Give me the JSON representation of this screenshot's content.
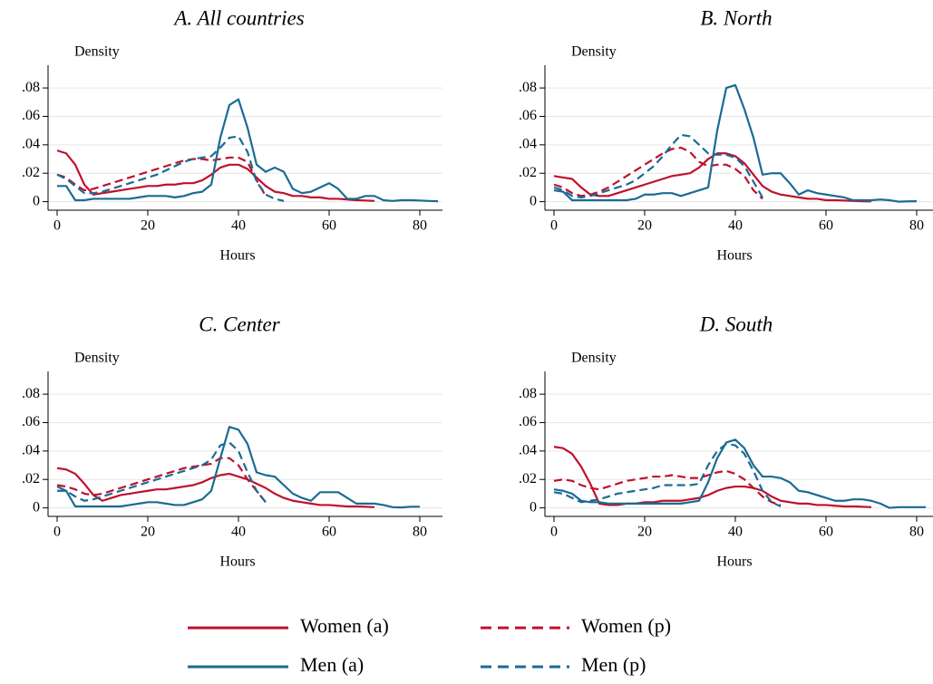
{
  "legend": [
    {
      "name": "Women (a)",
      "color": "#c0102c",
      "dashed": false
    },
    {
      "name": "Women (p)",
      "color": "#c0102c",
      "dashed": true
    },
    {
      "name": "Men (a)",
      "color": "#1a6b94",
      "dashed": false
    },
    {
      "name": "Men (p)",
      "color": "#1a6b94",
      "dashed": true
    }
  ],
  "chart_data": [
    {
      "type": "line",
      "title": "A. All countries",
      "y_label": "Density",
      "x_label": "Hours",
      "xlim": [
        -2,
        85
      ],
      "ylim": [
        -0.006,
        0.096
      ],
      "xticks": [
        0,
        20,
        40,
        60,
        80
      ],
      "yticks": [
        0,
        {
          "value": 0.02,
          "label": ".02"
        },
        {
          "value": 0.04,
          "label": ".04"
        },
        {
          "value": 0.06,
          "label": ".06"
        },
        {
          "value": 0.08,
          "label": ".08"
        }
      ],
      "grid": true,
      "x": [
        0,
        2,
        4,
        6,
        8,
        10,
        12,
        14,
        16,
        18,
        20,
        22,
        24,
        26,
        28,
        30,
        32,
        34,
        36,
        38,
        40,
        42,
        44,
        46,
        48,
        50,
        52,
        54,
        56,
        58,
        60,
        62,
        64,
        66,
        68,
        70,
        72,
        74,
        76,
        78,
        80,
        82,
        84
      ],
      "series": [
        {
          "values": [
            0.036,
            0.034,
            0.026,
            0.012,
            0.005,
            0.006,
            0.007,
            0.008,
            0.009,
            0.01,
            0.011,
            0.011,
            0.012,
            0.012,
            0.013,
            0.013,
            0.015,
            0.019,
            0.024,
            0.026,
            0.026,
            0.023,
            0.017,
            0.011,
            0.007,
            0.006,
            0.004,
            0.004,
            0.003,
            0.003,
            0.002,
            0.002,
            0.0015,
            0.001,
            0.0008,
            0.0005,
            null,
            null,
            null,
            null,
            null,
            null,
            null
          ]
        },
        {
          "values": [
            0.019,
            0.017,
            0.012,
            0.008,
            0.009,
            0.011,
            0.013,
            0.015,
            0.017,
            0.019,
            0.021,
            0.023,
            0.025,
            0.027,
            0.029,
            0.03,
            0.03,
            0.029,
            0.03,
            0.031,
            0.031,
            0.028,
            0.015,
            0.004,
            null,
            null,
            null,
            null,
            null,
            null,
            null,
            null,
            null,
            null,
            null,
            null,
            null,
            null,
            null,
            null,
            null,
            null,
            null
          ]
        },
        {
          "values": [
            0.011,
            0.011,
            0.001,
            0.001,
            0.002,
            0.002,
            0.002,
            0.002,
            0.002,
            0.003,
            0.004,
            0.004,
            0.004,
            0.003,
            0.004,
            0.006,
            0.007,
            0.012,
            0.045,
            0.068,
            0.072,
            0.052,
            0.026,
            0.021,
            0.024,
            0.021,
            0.009,
            0.006,
            0.007,
            0.01,
            0.013,
            0.009,
            0.002,
            0.002,
            0.004,
            0.004,
            0.001,
            0.0005,
            0.001,
            0.001,
            0.0008,
            0.0005,
            0.0003
          ]
        },
        {
          "values": [
            0.019,
            0.016,
            0.011,
            0.006,
            0.006,
            0.007,
            0.009,
            0.011,
            0.013,
            0.015,
            0.017,
            0.019,
            0.022,
            0.025,
            0.028,
            0.03,
            0.031,
            0.032,
            0.038,
            0.045,
            0.046,
            0.035,
            0.014,
            0.005,
            0.002,
            0.0005,
            null,
            null,
            null,
            null,
            null,
            null,
            null,
            null,
            null,
            null,
            null,
            null,
            null,
            null,
            null,
            null,
            null
          ]
        }
      ]
    },
    {
      "type": "line",
      "title": "B. North",
      "y_label": "Density",
      "x_label": "Hours",
      "xlim": [
        -2,
        85
      ],
      "ylim": [
        -0.006,
        0.096
      ],
      "xticks": [
        0,
        20,
        40,
        60,
        80
      ],
      "yticks": [
        0,
        {
          "value": 0.02,
          "label": ".02"
        },
        {
          "value": 0.04,
          "label": ".04"
        },
        {
          "value": 0.06,
          "label": ".06"
        },
        {
          "value": 0.08,
          "label": ".08"
        }
      ],
      "grid": true,
      "x": [
        0,
        2,
        4,
        6,
        8,
        10,
        12,
        14,
        16,
        18,
        20,
        22,
        24,
        26,
        28,
        30,
        32,
        34,
        36,
        38,
        40,
        42,
        44,
        46,
        48,
        50,
        52,
        54,
        56,
        58,
        60,
        62,
        64,
        66,
        68,
        70,
        72,
        74,
        76,
        78,
        80,
        82,
        84
      ],
      "series": [
        {
          "values": [
            0.018,
            0.017,
            0.016,
            0.01,
            0.005,
            0.004,
            0.004,
            0.006,
            0.008,
            0.01,
            0.012,
            0.014,
            0.016,
            0.018,
            0.019,
            0.02,
            0.024,
            0.03,
            0.034,
            0.034,
            0.032,
            0.027,
            0.019,
            0.011,
            0.007,
            0.005,
            0.004,
            0.003,
            0.002,
            0.002,
            0.001,
            0.001,
            0.0008,
            0.0005,
            0.0003,
            0.0002,
            null,
            null,
            null,
            null,
            null,
            null,
            null
          ]
        },
        {
          "values": [
            0.012,
            0.01,
            0.006,
            0.004,
            0.005,
            0.007,
            0.01,
            0.014,
            0.018,
            0.022,
            0.026,
            0.03,
            0.034,
            0.037,
            0.038,
            0.035,
            0.028,
            0.025,
            0.026,
            0.026,
            0.023,
            0.018,
            0.008,
            0.002,
            null,
            null,
            null,
            null,
            null,
            null,
            null,
            null,
            null,
            null,
            null,
            null,
            null,
            null,
            null,
            null,
            null,
            null,
            null
          ]
        },
        {
          "values": [
            0.008,
            0.007,
            0.001,
            0.001,
            0.001,
            0.001,
            0.001,
            0.001,
            0.001,
            0.002,
            0.005,
            0.005,
            0.006,
            0.006,
            0.004,
            0.006,
            0.008,
            0.01,
            0.05,
            0.08,
            0.082,
            0.065,
            0.045,
            0.019,
            0.02,
            0.02,
            0.013,
            0.005,
            0.008,
            0.006,
            0.005,
            0.004,
            0.003,
            0.001,
            0.001,
            0.001,
            0.0015,
            0.001,
            0,
            0.0002,
            0.0003,
            null,
            null
          ]
        },
        {
          "values": [
            0.01,
            0.008,
            0.004,
            0.003,
            0.004,
            0.006,
            0.008,
            0.01,
            0.012,
            0.015,
            0.02,
            0.025,
            0.032,
            0.04,
            0.047,
            0.046,
            0.04,
            0.034,
            0.033,
            0.033,
            0.031,
            0.025,
            0.014,
            0.003,
            null,
            null,
            null,
            null,
            null,
            null,
            null,
            null,
            null,
            null,
            null,
            null,
            null,
            null,
            null,
            null,
            null,
            null,
            null
          ]
        }
      ]
    },
    {
      "type": "line",
      "title": "C. Center",
      "y_label": "Density",
      "x_label": "Hours",
      "xlim": [
        -2,
        85
      ],
      "ylim": [
        -0.006,
        0.096
      ],
      "xticks": [
        0,
        20,
        40,
        60,
        80
      ],
      "yticks": [
        0,
        {
          "value": 0.02,
          "label": ".02"
        },
        {
          "value": 0.04,
          "label": ".04"
        },
        {
          "value": 0.06,
          "label": ".06"
        },
        {
          "value": 0.08,
          "label": ".08"
        }
      ],
      "grid": true,
      "x": [
        0,
        2,
        4,
        6,
        8,
        10,
        12,
        14,
        16,
        18,
        20,
        22,
        24,
        26,
        28,
        30,
        32,
        34,
        36,
        38,
        40,
        42,
        44,
        46,
        48,
        50,
        52,
        54,
        56,
        58,
        60,
        62,
        64,
        66,
        68,
        70,
        72,
        74,
        76,
        78,
        80,
        82,
        84
      ],
      "series": [
        {
          "values": [
            0.028,
            0.027,
            0.024,
            0.017,
            0.009,
            0.005,
            0.007,
            0.009,
            0.01,
            0.011,
            0.012,
            0.013,
            0.013,
            0.014,
            0.015,
            0.016,
            0.018,
            0.021,
            0.023,
            0.024,
            0.022,
            0.02,
            0.017,
            0.014,
            0.01,
            0.007,
            0.005,
            0.004,
            0.003,
            0.002,
            0.002,
            0.0015,
            0.001,
            0.001,
            0.0008,
            0.0005,
            null,
            null,
            null,
            null,
            null,
            null,
            null
          ]
        },
        {
          "values": [
            0.016,
            0.015,
            0.013,
            0.01,
            0.009,
            0.01,
            0.012,
            0.014,
            0.016,
            0.018,
            0.02,
            0.022,
            0.024,
            0.026,
            0.028,
            0.029,
            0.03,
            0.031,
            0.035,
            0.035,
            0.03,
            0.02,
            0.012,
            0.004,
            null,
            null,
            null,
            null,
            null,
            null,
            null,
            null,
            null,
            null,
            null,
            null,
            null,
            null,
            null,
            null,
            null,
            null,
            null
          ]
        },
        {
          "values": [
            0.015,
            0.012,
            0.001,
            0.001,
            0.001,
            0.001,
            0.001,
            0.001,
            0.002,
            0.003,
            0.004,
            0.004,
            0.003,
            0.002,
            0.002,
            0.004,
            0.006,
            0.012,
            0.035,
            0.057,
            0.055,
            0.045,
            0.025,
            0.023,
            0.022,
            0.016,
            0.01,
            0.007,
            0.005,
            0.011,
            0.011,
            0.011,
            0.007,
            0.003,
            0.003,
            0.003,
            0.002,
            0.0005,
            0.0003,
            0.0008,
            0.0008,
            null,
            null
          ]
        },
        {
          "values": [
            0.012,
            0.012,
            0.008,
            0.005,
            0.006,
            0.008,
            0.01,
            0.012,
            0.014,
            0.016,
            0.018,
            0.02,
            0.022,
            0.024,
            0.026,
            0.028,
            0.03,
            0.034,
            0.044,
            0.046,
            0.04,
            0.025,
            0.012,
            0.004,
            null,
            null,
            null,
            null,
            null,
            null,
            null,
            null,
            null,
            null,
            null,
            null,
            null,
            null,
            null,
            null,
            null,
            null,
            null
          ]
        }
      ]
    },
    {
      "type": "line",
      "title": "D. South",
      "y_label": "Density",
      "x_label": "Hours",
      "xlim": [
        -2,
        85
      ],
      "ylim": [
        -0.006,
        0.096
      ],
      "xticks": [
        0,
        20,
        40,
        60,
        80
      ],
      "yticks": [
        0,
        {
          "value": 0.02,
          "label": ".02"
        },
        {
          "value": 0.04,
          "label": ".04"
        },
        {
          "value": 0.06,
          "label": ".06"
        },
        {
          "value": 0.08,
          "label": ".08"
        }
      ],
      "grid": true,
      "x": [
        0,
        2,
        4,
        6,
        8,
        10,
        12,
        14,
        16,
        18,
        20,
        22,
        24,
        26,
        28,
        30,
        32,
        34,
        36,
        38,
        40,
        42,
        44,
        46,
        48,
        50,
        52,
        54,
        56,
        58,
        60,
        62,
        64,
        66,
        68,
        70,
        72,
        74,
        76,
        78,
        80,
        82,
        84
      ],
      "series": [
        {
          "values": [
            0.043,
            0.042,
            0.038,
            0.029,
            0.017,
            0.003,
            0.002,
            0.002,
            0.003,
            0.003,
            0.004,
            0.004,
            0.005,
            0.005,
            0.005,
            0.006,
            0.007,
            0.009,
            0.012,
            0.014,
            0.015,
            0.015,
            0.014,
            0.012,
            0.008,
            0.005,
            0.004,
            0.003,
            0.003,
            0.002,
            0.002,
            0.0015,
            0.001,
            0.001,
            0.0008,
            0.0005,
            null,
            null,
            null,
            null,
            null,
            null,
            null
          ]
        },
        {
          "values": [
            0.019,
            0.02,
            0.019,
            0.016,
            0.014,
            0.013,
            0.015,
            0.017,
            0.019,
            0.02,
            0.021,
            0.022,
            0.022,
            0.023,
            0.022,
            0.021,
            0.021,
            0.023,
            0.025,
            0.026,
            0.024,
            0.02,
            0.014,
            0.008,
            0.004,
            0.002,
            null,
            null,
            null,
            null,
            null,
            null,
            null,
            null,
            null,
            null,
            null,
            null,
            null,
            null,
            null,
            null,
            null
          ]
        },
        {
          "values": [
            0.013,
            0.012,
            0.01,
            0.005,
            0.004,
            0.004,
            0.003,
            0.003,
            0.003,
            0.003,
            0.003,
            0.003,
            0.003,
            0.003,
            0.003,
            0.004,
            0.005,
            0.018,
            0.035,
            0.046,
            0.048,
            0.042,
            0.03,
            0.022,
            0.022,
            0.021,
            0.018,
            0.012,
            0.011,
            0.009,
            0.007,
            0.005,
            0.005,
            0.006,
            0.006,
            0.005,
            0.003,
            0,
            0.0005,
            0.0005,
            0.0005,
            0.0005,
            null
          ]
        },
        {
          "values": [
            0.011,
            0.01,
            0.007,
            0.004,
            0.005,
            0.006,
            0.008,
            0.01,
            0.011,
            0.012,
            0.013,
            0.014,
            0.016,
            0.016,
            0.016,
            0.016,
            0.017,
            0.03,
            0.04,
            0.045,
            0.044,
            0.038,
            0.026,
            0.012,
            0.004,
            0.001,
            null,
            null,
            null,
            null,
            null,
            null,
            null,
            null,
            null,
            null,
            null,
            null,
            null,
            null,
            null,
            null,
            null
          ]
        }
      ]
    }
  ]
}
